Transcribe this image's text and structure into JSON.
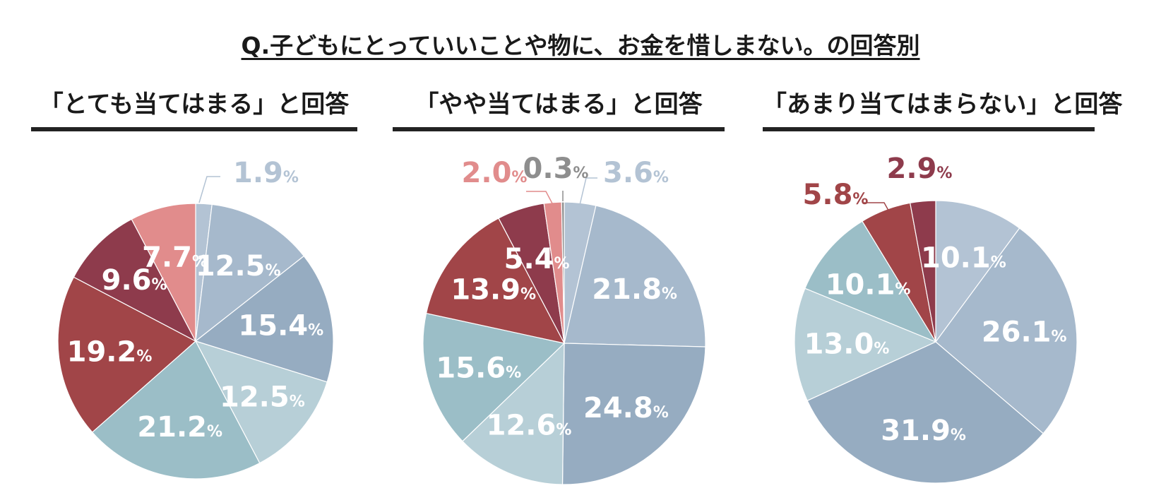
{
  "title": "Q.子どもにとっていいことや物に、お金を惜しまない。の回答別",
  "colors": {
    "c1": "#B3C3D4",
    "c2": "#A6B9CC",
    "c3": "#96ACC1",
    "c4": "#B7CFD7",
    "c5": "#9BBEC7",
    "c6": "#A14548",
    "c7": "#8E3B4C",
    "c8": "#E18C8C",
    "c9": "#8E8E8E"
  },
  "chart_data": [
    {
      "type": "pie",
      "title": "「とても当てはまる」と回答",
      "slices": [
        {
          "label": "1.9",
          "value": 1.9,
          "color": "#B3C3D4",
          "outside": true
        },
        {
          "label": "12.5",
          "value": 12.5,
          "color": "#A6B9CC"
        },
        {
          "label": "15.4",
          "value": 15.4,
          "color": "#96ACC1"
        },
        {
          "label": "12.5",
          "value": 12.5,
          "color": "#B7CFD7"
        },
        {
          "label": "21.2",
          "value": 21.2,
          "color": "#9BBEC7"
        },
        {
          "label": "19.2",
          "value": 19.2,
          "color": "#A14548"
        },
        {
          "label": "9.6",
          "value": 9.6,
          "color": "#8E3B4C"
        },
        {
          "label": "7.7",
          "value": 7.7,
          "color": "#E18C8C"
        }
      ]
    },
    {
      "type": "pie",
      "title": "「やや当てはまる」と回答",
      "slices": [
        {
          "label": "3.6",
          "value": 3.6,
          "color": "#B3C3D4",
          "outside": true
        },
        {
          "label": "21.8",
          "value": 21.8,
          "color": "#A6B9CC"
        },
        {
          "label": "24.8",
          "value": 24.8,
          "color": "#96ACC1"
        },
        {
          "label": "12.6",
          "value": 12.6,
          "color": "#B7CFD7"
        },
        {
          "label": "15.6",
          "value": 15.6,
          "color": "#9BBEC7"
        },
        {
          "label": "13.9",
          "value": 13.9,
          "color": "#A14548"
        },
        {
          "label": "5.4",
          "value": 5.4,
          "color": "#8E3B4C"
        },
        {
          "label": "2.0",
          "value": 2.0,
          "color": "#E18C8C",
          "outside": true
        },
        {
          "label": "0.3",
          "value": 0.3,
          "color": "#8E8E8E",
          "outside": true
        }
      ]
    },
    {
      "type": "pie",
      "title": "「あまり当てはまらない」と回答",
      "slices": [
        {
          "label": "10.1",
          "value": 10.1,
          "color": "#B3C3D4"
        },
        {
          "label": "26.1",
          "value": 26.1,
          "color": "#A6B9CC"
        },
        {
          "label": "31.9",
          "value": 31.9,
          "color": "#96ACC1"
        },
        {
          "label": "13.0",
          "value": 13.0,
          "color": "#B7CFD7"
        },
        {
          "label": "10.1",
          "value": 10.1,
          "color": "#9BBEC7"
        },
        {
          "label": "5.8",
          "value": 5.8,
          "color": "#A14548",
          "outside": true
        },
        {
          "label": "2.9",
          "value": 2.9,
          "color": "#8E3B4C",
          "outside": true
        }
      ]
    }
  ],
  "unit": "%"
}
